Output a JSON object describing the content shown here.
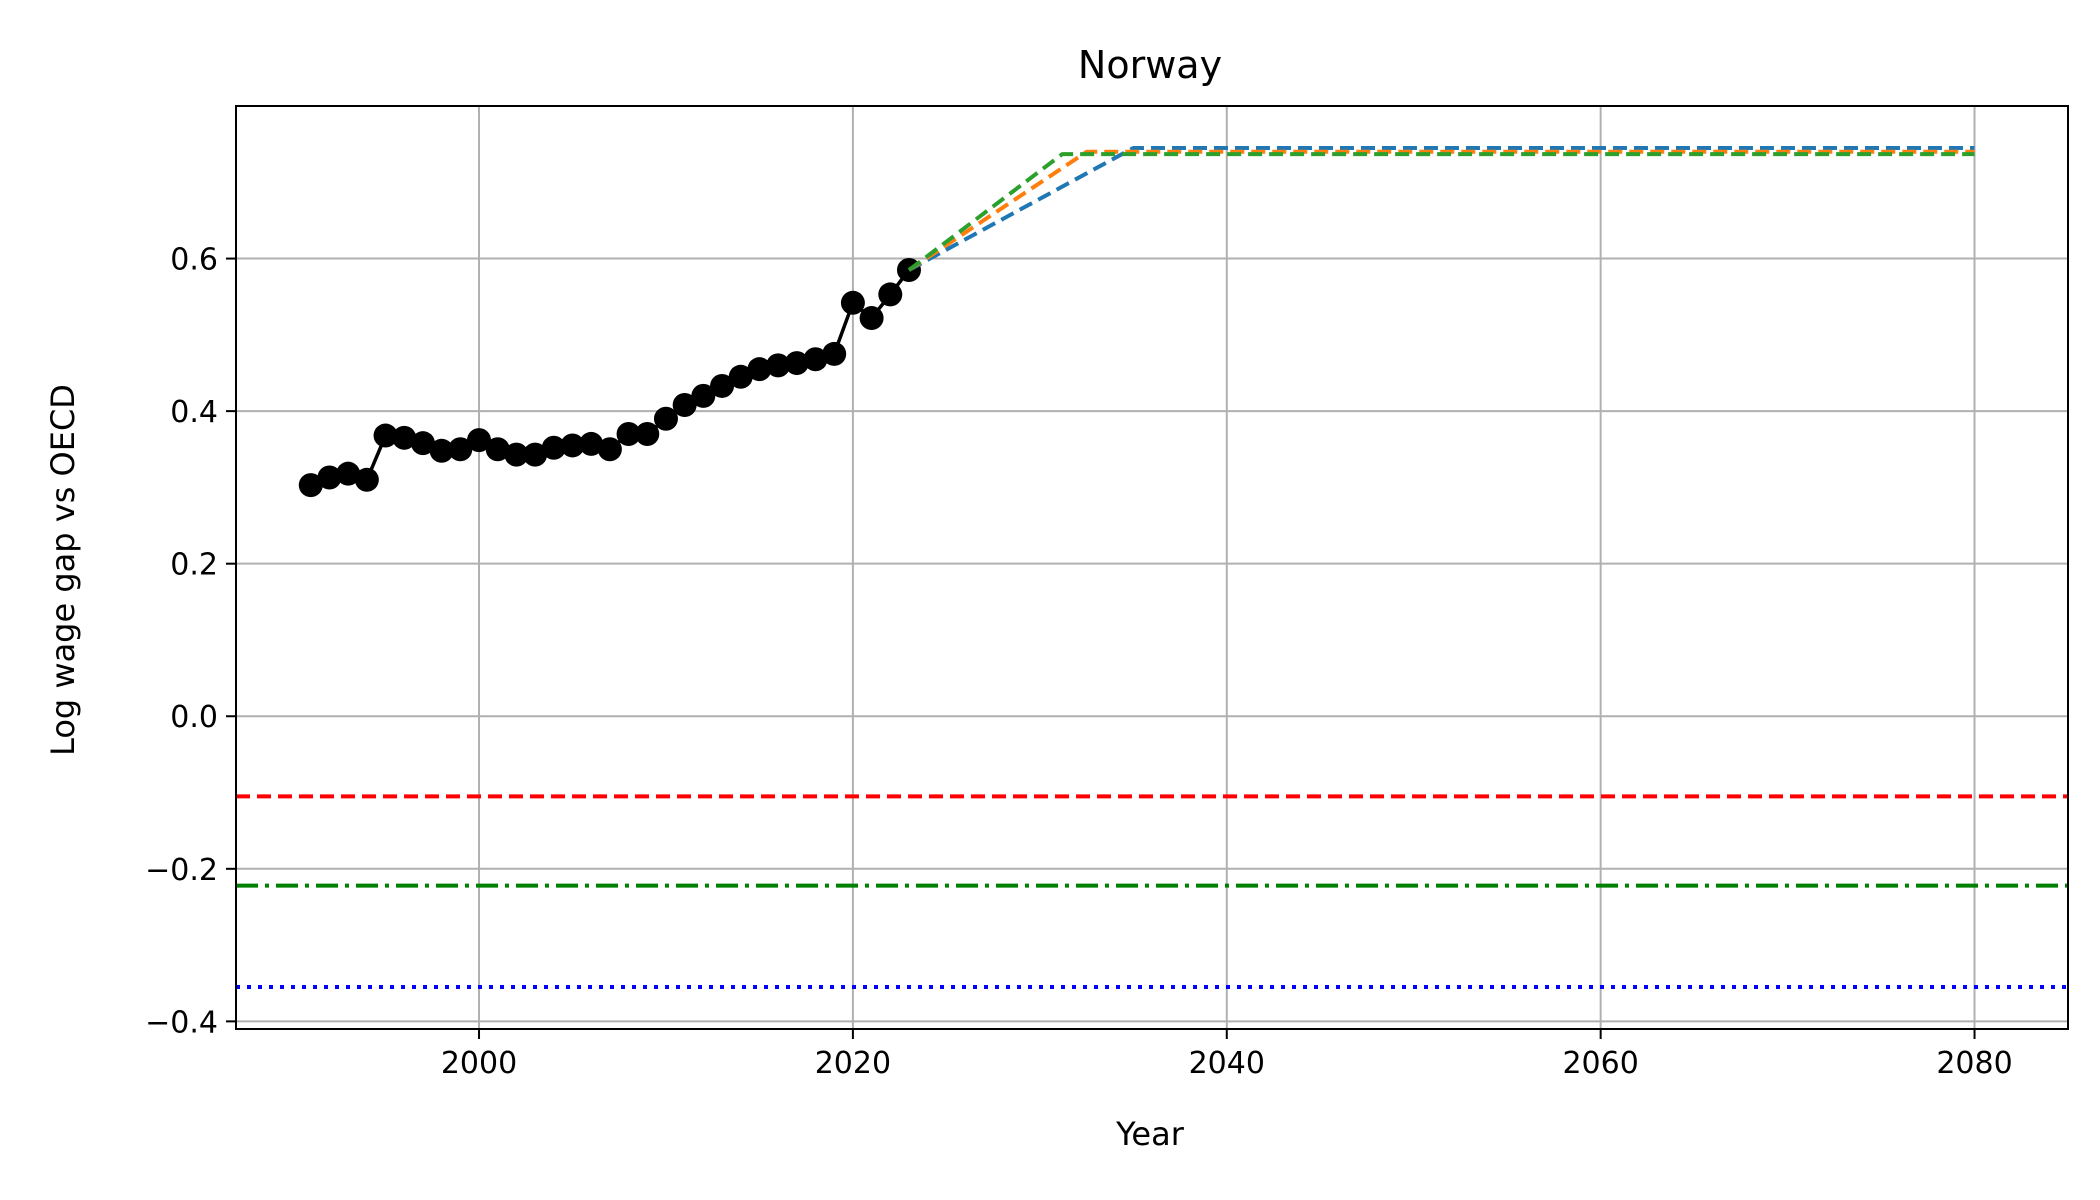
{
  "chart_data": {
    "type": "line",
    "title": "Norway",
    "xlabel": "Year",
    "ylabel": "Log wage gap vs OECD",
    "xlim": [
      1987,
      2085
    ],
    "ylim": [
      -0.41,
      0.8
    ],
    "xticks": [
      2000,
      2020,
      2040,
      2060,
      2080
    ],
    "yticks": [
      -0.4,
      -0.2,
      0.0,
      0.2,
      0.4,
      0.6
    ],
    "ytick_labels": [
      "−0.4",
      "−0.2",
      "0.0",
      "0.2",
      "0.4",
      "0.6"
    ],
    "xtick_labels": [
      "2000",
      "2020",
      "2040",
      "2060",
      "2080"
    ],
    "grid": true,
    "legend": "none",
    "series": [
      {
        "style": "solid-markers",
        "color": "#000000",
        "x": [
          1991,
          1992,
          1993,
          1994,
          1995,
          1996,
          1997,
          1998,
          1999,
          2000,
          2001,
          2002,
          2003,
          2004,
          2005,
          2006,
          2007,
          2008,
          2009,
          2010,
          2011,
          2012,
          2013,
          2014,
          2015,
          2016,
          2017,
          2018,
          2019,
          2020,
          2021,
          2022,
          2023
        ],
        "values": [
          0.303,
          0.313,
          0.318,
          0.31,
          0.368,
          0.365,
          0.358,
          0.348,
          0.35,
          0.362,
          0.35,
          0.343,
          0.343,
          0.352,
          0.355,
          0.357,
          0.35,
          0.37,
          0.37,
          0.39,
          0.408,
          0.42,
          0.433,
          0.445,
          0.455,
          0.46,
          0.463,
          0.468,
          0.475,
          0.542,
          0.522,
          0.553,
          0.585
        ]
      },
      {
        "style": "dashed",
        "color": "#1f77b4",
        "x": [
          2023,
          2035,
          2080
        ],
        "values": [
          0.585,
          0.745,
          0.745
        ]
      },
      {
        "style": "dashed",
        "color": "#ff7f0e",
        "x": [
          2023,
          2032.5,
          2080
        ],
        "values": [
          0.585,
          0.74,
          0.74
        ]
      },
      {
        "style": "dashed",
        "color": "#2ca02c",
        "x": [
          2023,
          2031.2,
          2080
        ],
        "values": [
          0.585,
          0.737,
          0.737
        ]
      }
    ],
    "hlines": [
      {
        "value": -0.105,
        "style": "dashed",
        "color": "#ff0000"
      },
      {
        "value": -0.222,
        "style": "dashdot",
        "color": "#008000"
      },
      {
        "value": -0.355,
        "style": "dotted",
        "color": "#0000ff"
      }
    ]
  }
}
